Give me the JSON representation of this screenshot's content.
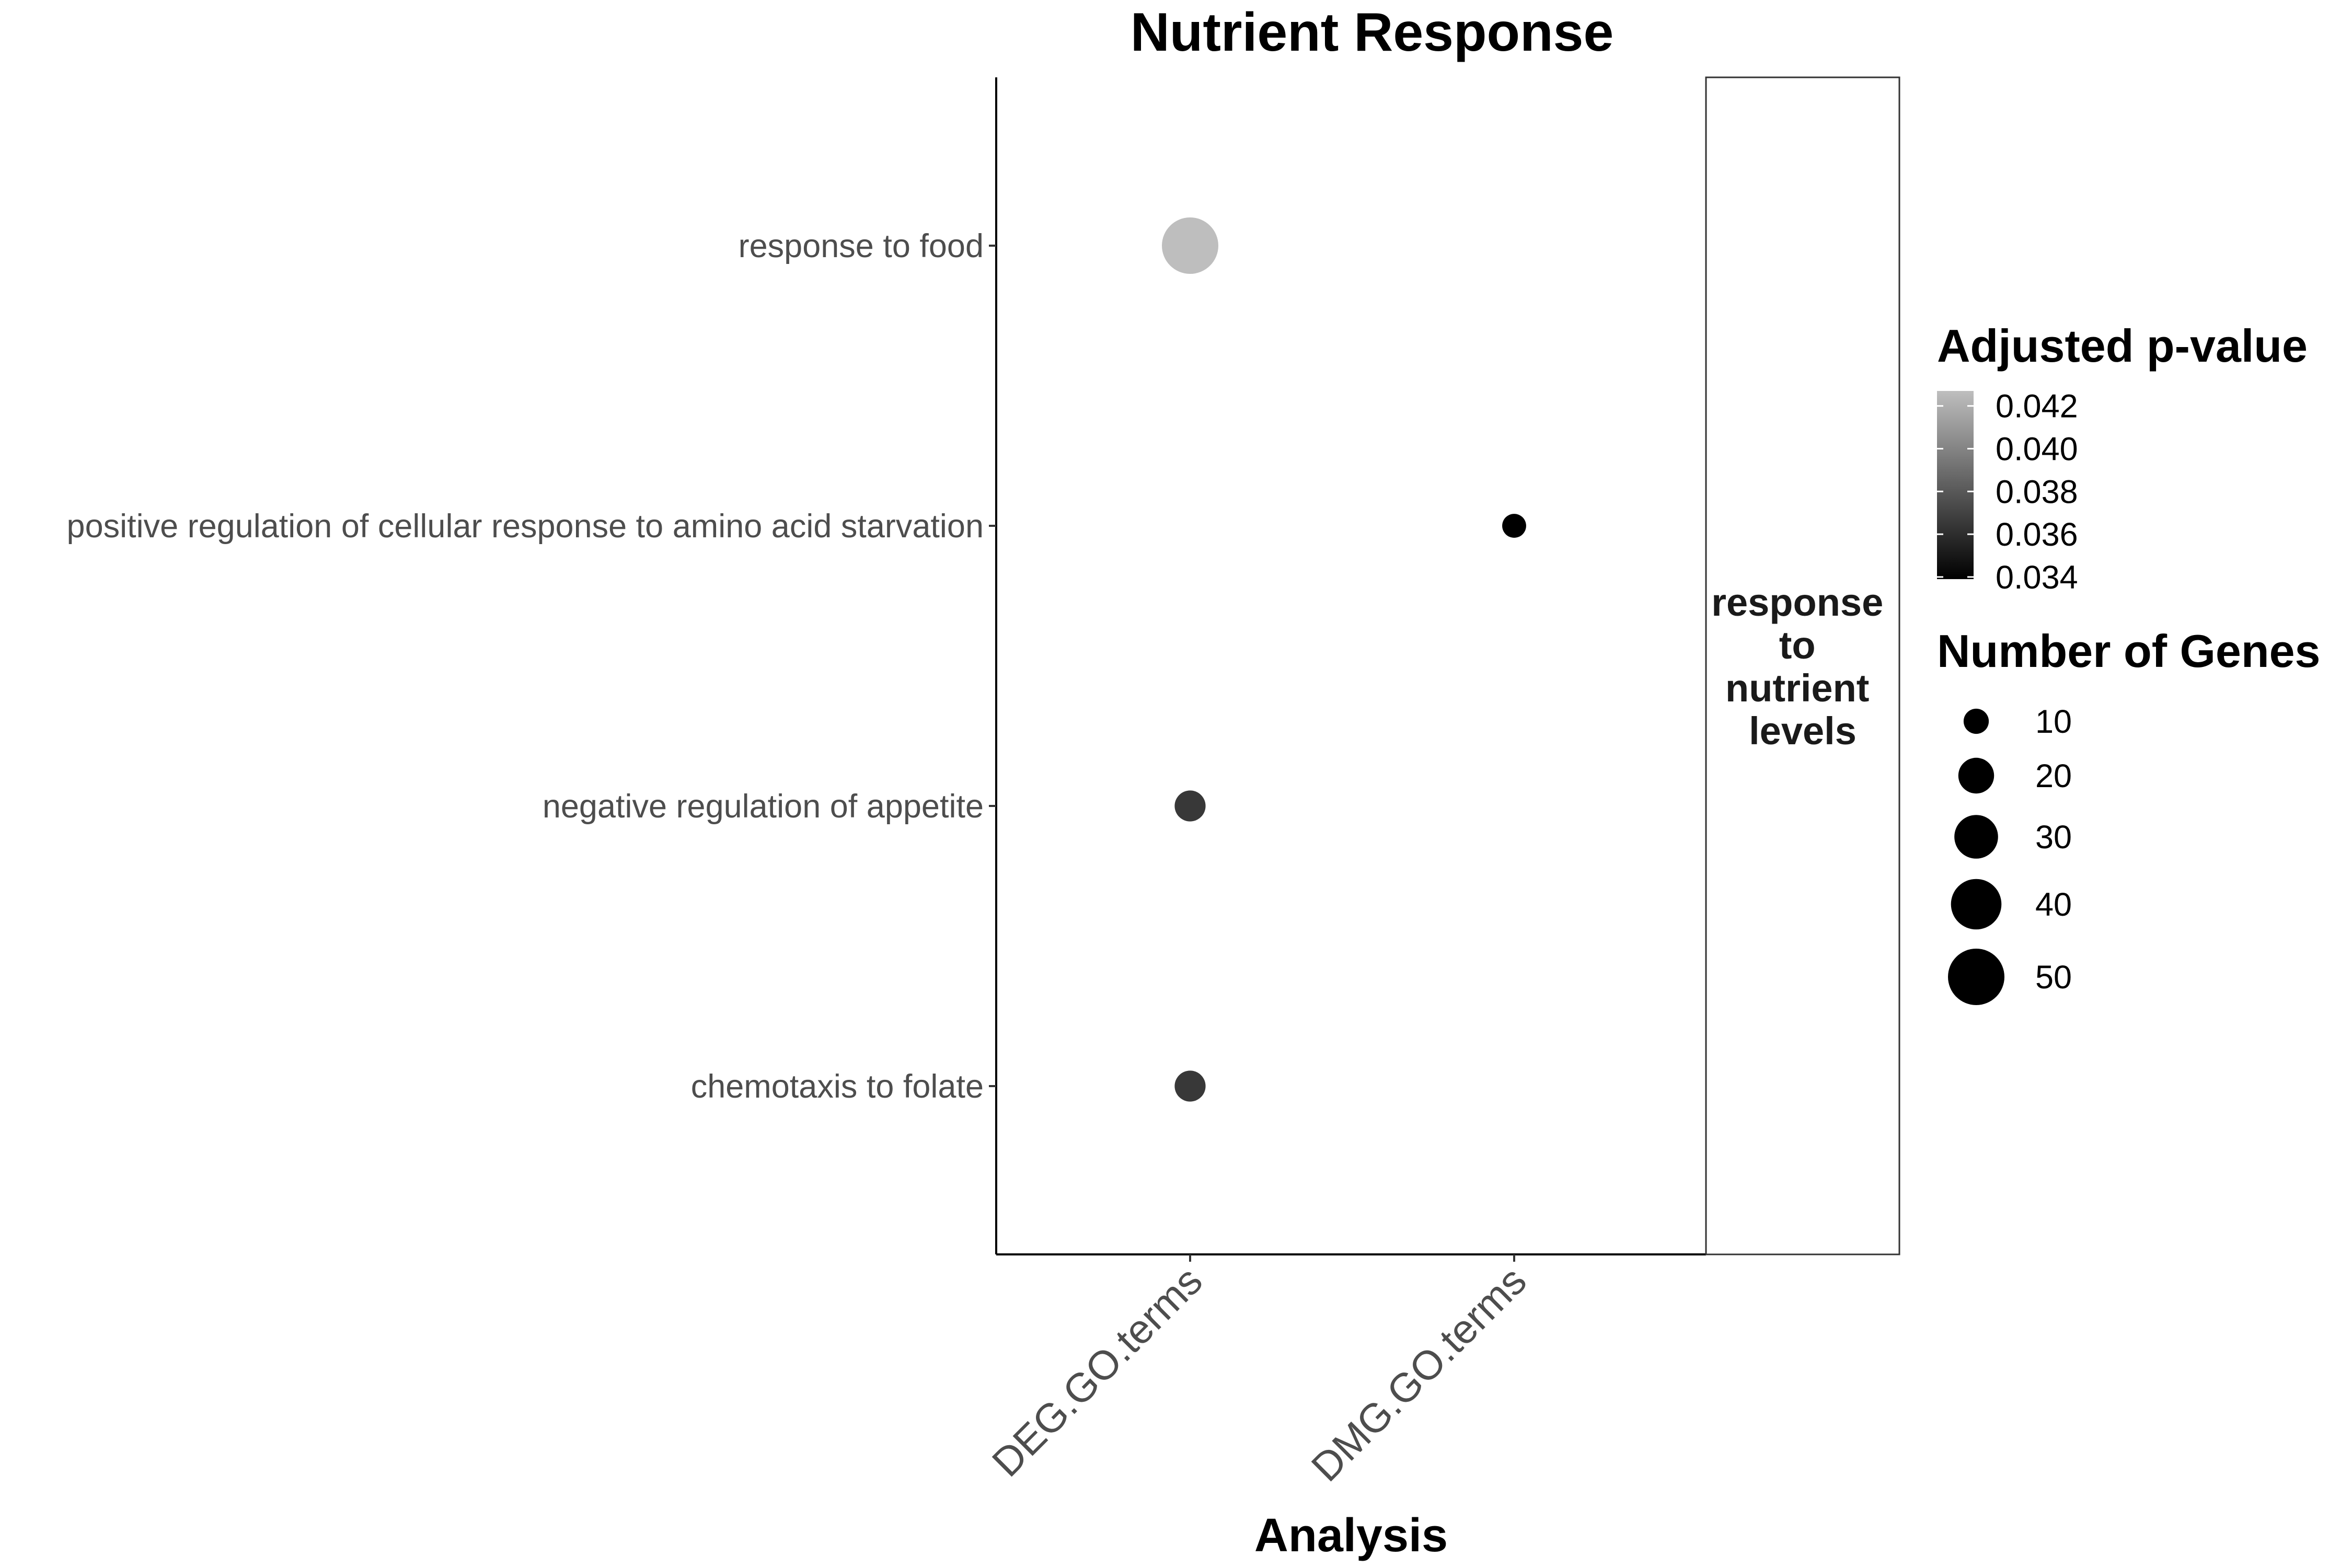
{
  "chart_data": {
    "type": "scatter",
    "title": "Nutrient Response",
    "xlabel": "Analysis",
    "ylabel": "",
    "facet_label": [
      "response",
      "to",
      "nutrient",
      "levels"
    ],
    "x_categories": [
      "DEG.GO.terms",
      "DMG.GO.terms"
    ],
    "y_categories": [
      "response to food",
      "positive regulation of cellular response to amino acid starvation",
      "negative regulation of appetite",
      "chemotaxis to folate"
    ],
    "points": [
      {
        "x": "DEG.GO.terms",
        "y": "response to food",
        "genes": 50,
        "padj": 0.0427
      },
      {
        "x": "DMG.GO.terms",
        "y": "positive regulation of cellular response to amino acid starvation",
        "genes": 9,
        "padj": 0.0339
      },
      {
        "x": "DEG.GO.terms",
        "y": "negative regulation of appetite",
        "genes": 15,
        "padj": 0.0365
      },
      {
        "x": "DEG.GO.terms",
        "y": "chemotaxis to folate",
        "genes": 15,
        "padj": 0.0365
      }
    ],
    "color_scale": {
      "title": "Adjusted p-value",
      "low_color": "#000000",
      "high_color": "#bebebe",
      "range": [
        0.0339,
        0.0427
      ],
      "breaks": [
        0.034,
        0.036,
        0.038,
        0.04,
        0.042
      ],
      "labels": [
        "0.034",
        "0.036",
        "0.038",
        "0.040",
        "0.042"
      ]
    },
    "size_scale": {
      "title": "Number of Genes",
      "breaks": [
        10,
        20,
        30,
        40,
        50
      ],
      "labels": [
        "10",
        "20",
        "30",
        "40",
        "50"
      ]
    },
    "grid": false,
    "legend_position": "right"
  }
}
